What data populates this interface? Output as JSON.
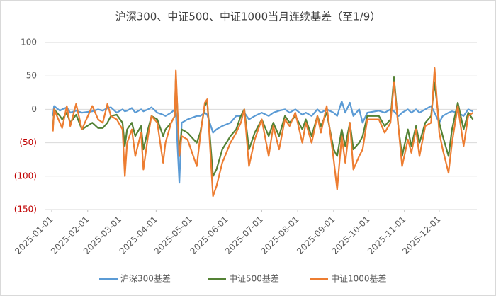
{
  "chart_data": {
    "type": "line",
    "title": "沪深300、中证500、中证1000当月连续基差（至1/9）",
    "x": [
      "2025-01-02",
      "2025-01-03",
      "2025-01-08",
      "2025-01-10",
      "2025-01-14",
      "2025-01-17",
      "2025-01-22",
      "2025-01-27",
      "2025-02-05",
      "2025-02-10",
      "2025-02-14",
      "2025-02-18",
      "2025-02-21",
      "2025-02-26",
      "2025-03-03",
      "2025-03-05",
      "2025-03-07",
      "2025-03-11",
      "2025-03-14",
      "2025-03-19",
      "2025-03-21",
      "2025-03-25",
      "2025-03-28",
      "2025-04-02",
      "2025-04-07",
      "2025-04-09",
      "2025-04-14",
      "2025-04-17",
      "2025-04-18",
      "2025-04-21",
      "2025-04-23",
      "2025-04-28",
      "2025-05-06",
      "2025-05-09",
      "2025-05-13",
      "2025-05-15",
      "2025-05-20",
      "2025-05-23",
      "2025-05-28",
      "2025-06-04",
      "2025-06-09",
      "2025-06-13",
      "2025-06-16",
      "2025-06-20",
      "2025-06-25",
      "2025-07-01",
      "2025-07-07",
      "2025-07-11",
      "2025-07-16",
      "2025-07-21",
      "2025-07-25",
      "2025-07-30",
      "2025-08-05",
      "2025-08-08",
      "2025-08-13",
      "2025-08-18",
      "2025-08-21",
      "2025-08-26",
      "2025-09-01",
      "2025-09-04",
      "2025-09-08",
      "2025-09-11",
      "2025-09-15",
      "2025-09-18",
      "2025-09-23",
      "2025-09-26",
      "2025-09-30",
      "2025-10-10",
      "2025-10-15",
      "2025-10-20",
      "2025-10-23",
      "2025-10-27",
      "2025-10-30",
      "2025-11-04",
      "2025-11-07",
      "2025-11-11",
      "2025-11-14",
      "2025-11-19",
      "2025-11-24",
      "2025-11-27",
      "2025-12-01",
      "2025-12-04",
      "2025-12-09",
      "2025-12-12",
      "2025-12-17",
      "2025-12-22",
      "2025-12-26",
      "2025-12-30"
    ],
    "series": [
      {
        "name": "沪深300基差",
        "color": "#5b9bd5",
        "values": [
          -10,
          5,
          -2,
          0,
          3,
          -5,
          -2,
          -5,
          -3,
          0,
          -2,
          2,
          3,
          -5,
          0,
          -3,
          -2,
          2,
          -5,
          0,
          -3,
          0,
          3,
          -5,
          -8,
          -10,
          -5,
          0,
          -5,
          -110,
          -20,
          -15,
          -10,
          -10,
          -5,
          -8,
          -35,
          -30,
          -25,
          -20,
          -10,
          -10,
          -5,
          -15,
          -10,
          -5,
          -10,
          -5,
          -2,
          0,
          -5,
          0,
          -8,
          -5,
          -10,
          0,
          -5,
          0,
          -5,
          -10,
          12,
          -5,
          10,
          -10,
          0,
          -20,
          -5,
          -2,
          -5,
          0,
          -3,
          -10,
          -5,
          0,
          -5,
          0,
          -5,
          0,
          5,
          -5,
          -20,
          -10,
          -5,
          -3,
          -5,
          -10,
          0,
          -3
        ]
      },
      {
        "name": "中证500基差",
        "color": "#548235",
        "values": [
          -30,
          0,
          -10,
          -15,
          -5,
          -20,
          -8,
          -30,
          -20,
          -28,
          -28,
          -20,
          -10,
          -8,
          -20,
          -55,
          -30,
          -20,
          -40,
          -25,
          -60,
          -30,
          -10,
          -15,
          -40,
          -30,
          -20,
          -10,
          50,
          -65,
          -30,
          -35,
          -50,
          -35,
          5,
          12,
          -100,
          -90,
          -60,
          -40,
          -30,
          -10,
          0,
          -60,
          -35,
          -15,
          -40,
          -20,
          -40,
          -10,
          -20,
          -10,
          -30,
          -15,
          -40,
          -10,
          -25,
          -5,
          -60,
          -70,
          -30,
          -55,
          -20,
          -60,
          -50,
          -40,
          -10,
          -10,
          -25,
          -15,
          48,
          -30,
          -70,
          -30,
          -55,
          -25,
          -50,
          -20,
          -10,
          40,
          -20,
          -40,
          -70,
          -30,
          10,
          -30,
          -5,
          -15
        ]
      },
      {
        "name": "中证1000基差",
        "color": "#ed7d31",
        "values": [
          -33,
          0,
          -20,
          -28,
          5,
          -25,
          8,
          -30,
          5,
          -15,
          -20,
          8,
          -10,
          -15,
          -30,
          -100,
          -50,
          -30,
          -70,
          -35,
          -90,
          -40,
          -10,
          -20,
          -80,
          -50,
          -20,
          -10,
          58,
          -70,
          -40,
          -45,
          -85,
          -40,
          10,
          15,
          -130,
          -115,
          -80,
          -50,
          -35,
          -20,
          0,
          -85,
          -45,
          -15,
          -70,
          -25,
          -60,
          -15,
          -25,
          -5,
          -50,
          -20,
          -50,
          -10,
          -35,
          5,
          -75,
          -120,
          -40,
          -80,
          -20,
          -90,
          -70,
          -60,
          -15,
          -15,
          -35,
          -20,
          40,
          -30,
          -85,
          -45,
          -65,
          -30,
          -70,
          -25,
          -20,
          62,
          -35,
          -60,
          -95,
          -50,
          5,
          -55,
          -10,
          -5
        ]
      }
    ],
    "xlim": [
      "2025-01-01",
      "2025-12-31"
    ],
    "xticks": [
      "2025-01-01",
      "2025-02-01",
      "2025-03-01",
      "2025-04-01",
      "2025-05-01",
      "2025-06-01",
      "2025-07-01",
      "2025-08-01",
      "2025-09-01",
      "2025-10-01",
      "2025-11-01",
      "2025-12-01"
    ],
    "ylim": [
      -150,
      100
    ],
    "yticks": [
      100,
      50,
      0,
      {
        "value": -50,
        "label": "(50)"
      },
      {
        "value": -100,
        "label": "(100)"
      },
      {
        "value": -150,
        "label": "(150)"
      }
    ],
    "negative_label_color": "#c00000",
    "grid": true,
    "legend": "bottom"
  }
}
